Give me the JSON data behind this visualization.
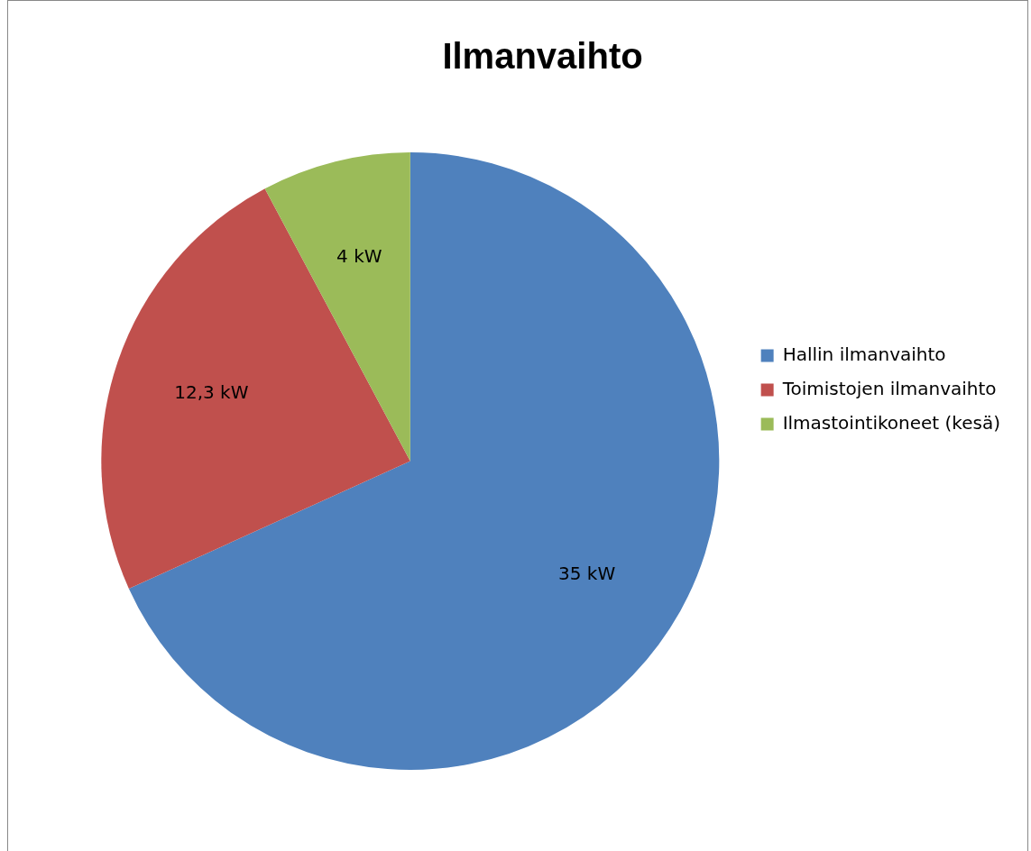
{
  "chart_data": {
    "type": "pie",
    "title": "Ilmanvaihto",
    "categories": [
      "Hallin ilmanvaihto",
      "Toimistojen ilmanvaihto",
      "Ilmastointikoneet (kesä)"
    ],
    "values": [
      35,
      12.3,
      4
    ],
    "colors": [
      "#4f81bd",
      "#c0504d",
      "#9bbb59"
    ],
    "value_labels": [
      "35 kW",
      "12,3 kW",
      "4 kW"
    ],
    "legend": "right"
  }
}
